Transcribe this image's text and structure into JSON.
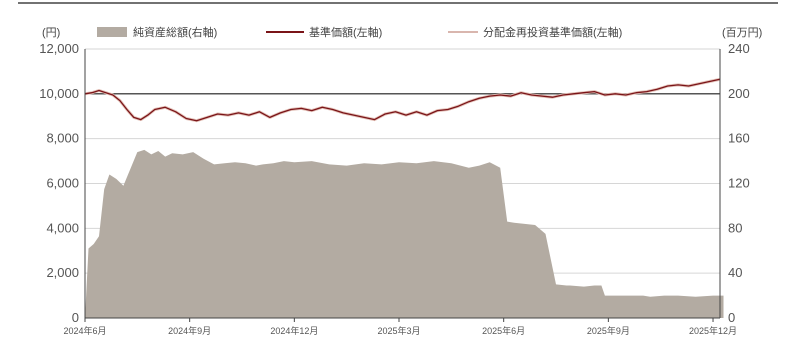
{
  "chart_data": {
    "type": "line",
    "units": {
      "left": "(円)",
      "right": "(百万円)"
    },
    "legend": [
      {
        "name": "純資産総額(右軸)",
        "kind": "area",
        "color": "#b3aba2"
      },
      {
        "name": "基準価額(左軸)",
        "kind": "line",
        "color": "#7a1418"
      },
      {
        "name": "分配金再投資基準価額(左軸)",
        "kind": "line",
        "color": "#d9b6ae"
      }
    ],
    "y_left": {
      "min": 0,
      "max": 12000,
      "ticks": [
        "0",
        "2,000",
        "4,000",
        "6,000",
        "8,000",
        "10,000",
        "12,000"
      ]
    },
    "y_right": {
      "min": 0,
      "max": 240,
      "ticks": [
        "0",
        "40",
        "80",
        "120",
        "160",
        "200",
        "240"
      ]
    },
    "x_ticks": [
      "2024年6月",
      "2024年9月",
      "2024年12月",
      "2025年3月",
      "2025年6月",
      "2025年9月",
      "2025年12月"
    ],
    "reference_line": 10000,
    "nav_series": {
      "name": "基準価額(左軸)",
      "months": [
        0,
        0.2,
        0.4,
        0.6,
        0.8,
        1.0,
        1.2,
        1.4,
        1.6,
        1.8,
        2.0,
        2.3,
        2.6,
        2.9,
        3.2,
        3.5,
        3.8,
        4.1,
        4.4,
        4.7,
        5.0,
        5.3,
        5.6,
        5.9,
        6.2,
        6.5,
        6.8,
        7.1,
        7.4,
        7.7,
        8.0,
        8.3,
        8.6,
        8.9,
        9.2,
        9.5,
        9.8,
        10.1,
        10.4,
        10.7,
        11.0,
        11.3,
        11.6,
        11.9,
        12.2,
        12.5,
        12.8,
        13.1,
        13.4,
        13.7,
        14.0,
        14.3,
        14.6,
        14.9,
        15.2,
        15.5,
        15.8,
        16.1,
        16.4,
        16.7,
        17.0,
        17.3,
        17.6,
        17.9,
        18.2
      ],
      "values": [
        10000,
        10050,
        10150,
        10050,
        9950,
        9700,
        9300,
        8950,
        8850,
        9050,
        9300,
        9400,
        9200,
        8900,
        8800,
        8950,
        9100,
        9050,
        9150,
        9050,
        9200,
        8950,
        9150,
        9300,
        9350,
        9250,
        9400,
        9300,
        9150,
        9050,
        8950,
        8850,
        9100,
        9200,
        9050,
        9200,
        9050,
        9250,
        9300,
        9450,
        9650,
        9800,
        9900,
        9950,
        9900,
        10050,
        9950,
        9900,
        9850,
        9950,
        10000,
        10050,
        10100,
        9950,
        10000,
        9950,
        10050,
        10100,
        10200,
        10350,
        10400,
        10350,
        10450,
        10550,
        10650
      ]
    },
    "net_assets": {
      "name": "純資産総額(右軸)",
      "months": [
        0,
        0.1,
        0.25,
        0.4,
        0.55,
        0.7,
        0.9,
        1.1,
        1.3,
        1.5,
        1.7,
        1.9,
        2.1,
        2.3,
        2.5,
        2.8,
        3.1,
        3.4,
        3.7,
        4.0,
        4.3,
        4.6,
        4.9,
        5.1,
        5.4,
        5.7,
        6.0,
        6.5,
        7.0,
        7.5,
        8.0,
        8.5,
        9.0,
        9.5,
        10.0,
        10.5,
        11.0,
        11.3,
        11.6,
        11.9,
        12.1,
        12.3,
        12.6,
        12.9,
        13.2,
        13.5,
        13.8,
        13.9,
        14.3,
        14.6,
        14.8,
        14.9,
        15.4,
        16.0,
        16.2,
        16.6,
        17.0,
        17.5,
        18.0,
        18.3
      ],
      "values": [
        0,
        62,
        66,
        73,
        115,
        128,
        124,
        118,
        133,
        148,
        150,
        146,
        149,
        144,
        147,
        146,
        148,
        142,
        137,
        138,
        139,
        138,
        136,
        137,
        138,
        140,
        139,
        140,
        137,
        136,
        138,
        137,
        139,
        138,
        140,
        138,
        134,
        136,
        139,
        134,
        86,
        85,
        84,
        83,
        75,
        30,
        29,
        29,
        28,
        29,
        29,
        20,
        20,
        20,
        19,
        20,
        20,
        19,
        20,
        20
      ]
    }
  }
}
